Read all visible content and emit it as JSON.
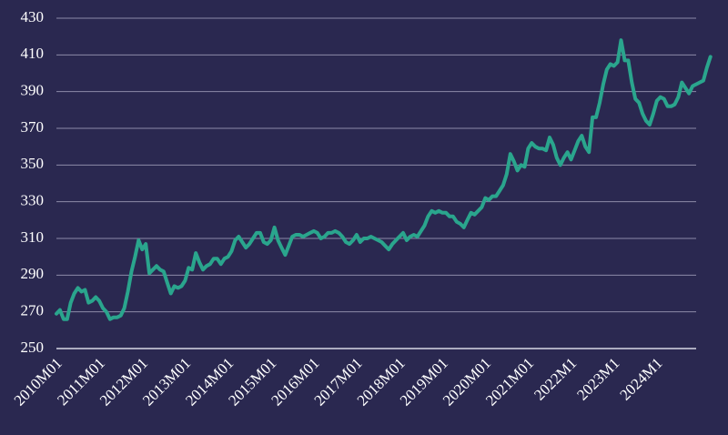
{
  "colors": {
    "background": "#2a2850",
    "grid": "#8c8aa8",
    "axis": "#d8d7e4",
    "text": "#ffffff",
    "line": "#2aa58d"
  },
  "chart_data": {
    "type": "line",
    "title": "",
    "xlabel": "",
    "ylabel": "",
    "ylim": [
      250,
      430
    ],
    "yticks": [
      250,
      270,
      290,
      310,
      330,
      350,
      370,
      390,
      410,
      430
    ],
    "xlim": [
      "2010M01",
      "2024M12"
    ],
    "xticks": [
      "2010M01",
      "2011M01",
      "2012M01",
      "2013M01",
      "2014M01",
      "2015M01",
      "2016M01",
      "2017M01",
      "2018M01",
      "2019M01",
      "2020M01",
      "2021M01",
      "2022M1",
      "2023M1",
      "2024M1"
    ],
    "grid": true,
    "legend": "none",
    "series": [
      {
        "values": [
          [
            "2010M01",
            269
          ],
          [
            "2010M02",
            271
          ],
          [
            "2010M03",
            266
          ],
          [
            "2010M04",
            266
          ],
          [
            "2010M05",
            275
          ],
          [
            "2010M06",
            280
          ],
          [
            "2010M07",
            283
          ],
          [
            "2010M08",
            281
          ],
          [
            "2010M09",
            282
          ],
          [
            "2010M10",
            275
          ],
          [
            "2010M11",
            276
          ],
          [
            "2010M12",
            278
          ],
          [
            "2011M01",
            276
          ],
          [
            "2011M02",
            272
          ],
          [
            "2011M03",
            270
          ],
          [
            "2011M04",
            266
          ],
          [
            "2011M05",
            267
          ],
          [
            "2011M06",
            267
          ],
          [
            "2011M07",
            268
          ],
          [
            "2011M08",
            272
          ],
          [
            "2011M09",
            281
          ],
          [
            "2011M10",
            292
          ],
          [
            "2011M11",
            300
          ],
          [
            "2011M12",
            309
          ],
          [
            "2012M01",
            304
          ],
          [
            "2012M02",
            307
          ],
          [
            "2012M03",
            291
          ],
          [
            "2012M04",
            293
          ],
          [
            "2012M05",
            295
          ],
          [
            "2012M06",
            293
          ],
          [
            "2012M07",
            292
          ],
          [
            "2012M08",
            286
          ],
          [
            "2012M09",
            280
          ],
          [
            "2012M10",
            284
          ],
          [
            "2012M11",
            283
          ],
          [
            "2012M12",
            284
          ],
          [
            "2013M01",
            287
          ],
          [
            "2013M02",
            294
          ],
          [
            "2013M03",
            293
          ],
          [
            "2013M04",
            302
          ],
          [
            "2013M05",
            297
          ],
          [
            "2013M06",
            293
          ],
          [
            "2013M07",
            295
          ],
          [
            "2013M08",
            296
          ],
          [
            "2013M09",
            299
          ],
          [
            "2013M10",
            299
          ],
          [
            "2013M11",
            296
          ],
          [
            "2013M12",
            299
          ],
          [
            "2014M01",
            300
          ],
          [
            "2014M02",
            303
          ],
          [
            "2014M03",
            309
          ],
          [
            "2014M04",
            311
          ],
          [
            "2014M05",
            308
          ],
          [
            "2014M06",
            305
          ],
          [
            "2014M07",
            307
          ],
          [
            "2014M08",
            310
          ],
          [
            "2014M09",
            313
          ],
          [
            "2014M10",
            313
          ],
          [
            "2014M11",
            308
          ],
          [
            "2014M12",
            307
          ],
          [
            "2015M01",
            309
          ],
          [
            "2015M02",
            316
          ],
          [
            "2015M03",
            309
          ],
          [
            "2015M04",
            305
          ],
          [
            "2015M05",
            301
          ],
          [
            "2015M06",
            306
          ],
          [
            "2015M07",
            311
          ],
          [
            "2015M08",
            312
          ],
          [
            "2015M09",
            312
          ],
          [
            "2015M10",
            311
          ],
          [
            "2015M11",
            312
          ],
          [
            "2015M12",
            313
          ],
          [
            "2016M01",
            314
          ],
          [
            "2016M02",
            313
          ],
          [
            "2016M03",
            310
          ],
          [
            "2016M04",
            311
          ],
          [
            "2016M05",
            313
          ],
          [
            "2016M06",
            313
          ],
          [
            "2016M07",
            314
          ],
          [
            "2016M08",
            313
          ],
          [
            "2016M09",
            311
          ],
          [
            "2016M10",
            308
          ],
          [
            "2016M11",
            307
          ],
          [
            "2016M12",
            309
          ],
          [
            "2017M01",
            312
          ],
          [
            "2017M02",
            308
          ],
          [
            "2017M03",
            310
          ],
          [
            "2017M04",
            310
          ],
          [
            "2017M05",
            311
          ],
          [
            "2017M06",
            310
          ],
          [
            "2017M07",
            309
          ],
          [
            "2017M08",
            308
          ],
          [
            "2017M09",
            306
          ],
          [
            "2017M10",
            304
          ],
          [
            "2017M11",
            307
          ],
          [
            "2017M12",
            309
          ],
          [
            "2018M01",
            311
          ],
          [
            "2018M02",
            313
          ],
          [
            "2018M03",
            309
          ],
          [
            "2018M04",
            311
          ],
          [
            "2018M05",
            312
          ],
          [
            "2018M06",
            311
          ],
          [
            "2018M07",
            314
          ],
          [
            "2018M08",
            317
          ],
          [
            "2018M09",
            322
          ],
          [
            "2018M10",
            325
          ],
          [
            "2018M11",
            324
          ],
          [
            "2018M12",
            325
          ],
          [
            "2019M01",
            324
          ],
          [
            "2019M02",
            324
          ],
          [
            "2019M03",
            322
          ],
          [
            "2019M04",
            322
          ],
          [
            "2019M05",
            319
          ],
          [
            "2019M06",
            318
          ],
          [
            "2019M07",
            316
          ],
          [
            "2019M08",
            320
          ],
          [
            "2019M09",
            324
          ],
          [
            "2019M10",
            323
          ],
          [
            "2019M11",
            325
          ],
          [
            "2019M12",
            327
          ],
          [
            "2020M01",
            332
          ],
          [
            "2020M02",
            331
          ],
          [
            "2020M03",
            333
          ],
          [
            "2020M04",
            333
          ],
          [
            "2020M05",
            336
          ],
          [
            "2020M06",
            339
          ],
          [
            "2020M07",
            345
          ],
          [
            "2020M08",
            356
          ],
          [
            "2020M09",
            352
          ],
          [
            "2020M10",
            347
          ],
          [
            "2020M11",
            350
          ],
          [
            "2020M12",
            349
          ],
          [
            "2021M01",
            359
          ],
          [
            "2021M02",
            362
          ],
          [
            "2021M03",
            360
          ],
          [
            "2021M04",
            359
          ],
          [
            "2021M05",
            359
          ],
          [
            "2021M06",
            358
          ],
          [
            "2021M07",
            365
          ],
          [
            "2021M08",
            361
          ],
          [
            "2021M09",
            354
          ],
          [
            "2021M10",
            350
          ],
          [
            "2021M11",
            354
          ],
          [
            "2021M12",
            357
          ],
          [
            "2022M1",
            353
          ],
          [
            "2022M2",
            358
          ],
          [
            "2022M3",
            363
          ],
          [
            "2022M4",
            366
          ],
          [
            "2022M5",
            360
          ],
          [
            "2022M6",
            357
          ],
          [
            "2022M7",
            376
          ],
          [
            "2022M8",
            376
          ],
          [
            "2022M9",
            384
          ],
          [
            "2022M10",
            394
          ],
          [
            "2022M11",
            402
          ],
          [
            "2022M12",
            405
          ],
          [
            "2023M1",
            404
          ],
          [
            "2023M2",
            406
          ],
          [
            "2023M3",
            418
          ],
          [
            "2023M4",
            407
          ],
          [
            "2023M5",
            407
          ],
          [
            "2023M6",
            395
          ],
          [
            "2023M7",
            386
          ],
          [
            "2023M8",
            384
          ],
          [
            "2023M9",
            378
          ],
          [
            "2023M10",
            374
          ],
          [
            "2023M11",
            372
          ],
          [
            "2023M12",
            378
          ],
          [
            "2024M1",
            385
          ],
          [
            "2024M2",
            387
          ],
          [
            "2024M3",
            386
          ],
          [
            "2024M4",
            382
          ],
          [
            "2024M5",
            382
          ],
          [
            "2024M6",
            383
          ],
          [
            "2024M7",
            387
          ],
          [
            "2024M8",
            395
          ],
          [
            "2024M9",
            392
          ],
          [
            "2024M10",
            389
          ],
          [
            "2024M11",
            393
          ],
          [
            "2024M12",
            394
          ],
          [
            "2025M1",
            395
          ],
          [
            "2025M2",
            396
          ],
          [
            "2025M3",
            403
          ],
          [
            "2025M4",
            409
          ]
        ]
      }
    ]
  }
}
